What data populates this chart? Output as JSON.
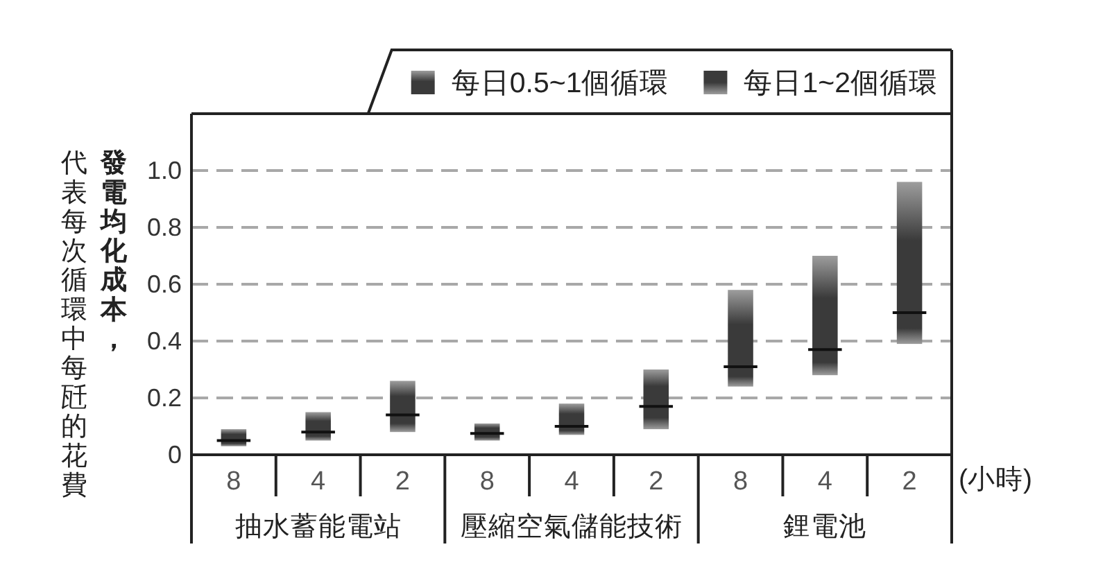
{
  "chart_data": {
    "type": "bar",
    "categories": [
      "8",
      "4",
      "2",
      "8",
      "4",
      "2",
      "8",
      "4",
      "2"
    ],
    "series": [
      {
        "name": "每日1~2個循環",
        "color": "#3a3a3a",
        "base": [
          0.03,
          0.05,
          0.08,
          0.05,
          0.07,
          0.09,
          0.24,
          0.28,
          0.39
        ],
        "values": [
          0.02,
          0.03,
          0.06,
          0.025,
          0.03,
          0.08,
          0.07,
          0.09,
          0.11
        ]
      },
      {
        "name": "每日0.5~1個循環",
        "color": "#3a3a3a",
        "base": [
          0.05,
          0.08,
          0.14,
          0.075,
          0.1,
          0.17,
          0.31,
          0.37,
          0.5
        ],
        "values": [
          0.04,
          0.07,
          0.12,
          0.035,
          0.08,
          0.13,
          0.27,
          0.33,
          0.46
        ]
      }
    ],
    "ylabel": "發電均化成本，代表每次循環中每瓩的花費",
    "xlabel": "(小時)",
    "annotations": [
      "抽水蓄能電站",
      "壓縮空氣儲能技術",
      "鋰電池"
    ],
    "ylim": [
      0,
      1.2
    ],
    "yticks": [
      0,
      0.2,
      0.4,
      0.6,
      0.8,
      {
        "value": 1,
        "label": "1.0"
      }
    ],
    "grid": "y",
    "legend": "top right"
  }
}
